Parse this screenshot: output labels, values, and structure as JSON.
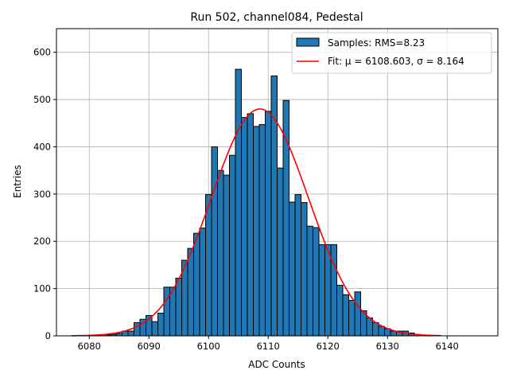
{
  "chart_data": {
    "type": "bar",
    "title": "Run 502, channel084, Pedestal",
    "xlabel": "ADC Counts",
    "ylabel": "Entries",
    "xlim": [
      6074.5,
      6148.5
    ],
    "ylim": [
      0,
      650
    ],
    "xticks": [
      6080,
      6090,
      6100,
      6110,
      6120,
      6130,
      6140
    ],
    "yticks": [
      0,
      100,
      200,
      300,
      400,
      500,
      600
    ],
    "grid": true,
    "legend_position": "top-right",
    "bin_width": 1,
    "bins": [
      6081,
      6082,
      6083,
      6084,
      6085,
      6086,
      6087,
      6088,
      6089,
      6090,
      6091,
      6092,
      6093,
      6094,
      6095,
      6096,
      6097,
      6098,
      6099,
      6100,
      6101,
      6102,
      6103,
      6104,
      6105,
      6106,
      6107,
      6108,
      6109,
      6110,
      6111,
      6112,
      6113,
      6114,
      6115,
      6116,
      6117,
      6118,
      6119,
      6120,
      6121,
      6122,
      6123,
      6124,
      6125,
      6126,
      6127,
      6128,
      6129,
      6130,
      6131,
      6132,
      6133,
      6134,
      6135,
      6136
    ],
    "counts": [
      1,
      1,
      2,
      3,
      5,
      10,
      10,
      28,
      35,
      43,
      30,
      48,
      103,
      103,
      122,
      160,
      185,
      217,
      228,
      299,
      400,
      350,
      340,
      382,
      564,
      462,
      470,
      443,
      447,
      475,
      550,
      355,
      498,
      283,
      299,
      282,
      232,
      229,
      193,
      193,
      193,
      107,
      87,
      75,
      93,
      53,
      38,
      28,
      20,
      15,
      10,
      10,
      10,
      6,
      3,
      1
    ],
    "series": [
      {
        "name": "Samples: RMS=8.23",
        "kind": "histogram",
        "color": "#1f77b4",
        "edgecolor": "#000000"
      },
      {
        "name": "Fit: μ = 6108.603, σ = 8.164",
        "kind": "gaussian_fit",
        "color": "#ff0000",
        "mu": 6108.603,
        "sigma": 8.164,
        "amplitude": 480,
        "x_range": [
          6077,
          6139
        ]
      }
    ]
  }
}
